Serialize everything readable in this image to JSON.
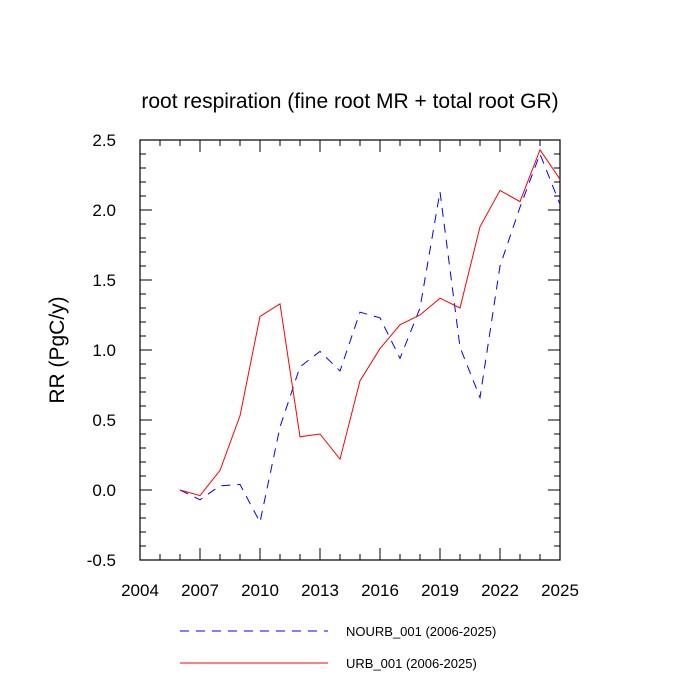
{
  "chart_data": {
    "type": "line",
    "title": "root respiration (fine root MR + total root GR)",
    "xlabel": "",
    "ylabel": "RR  (PgC/y)",
    "xlim": [
      2004,
      2025
    ],
    "ylim": [
      -0.5,
      2.5
    ],
    "x_ticks": [
      2004,
      2007,
      2010,
      2013,
      2016,
      2019,
      2022,
      2025
    ],
    "y_ticks": [
      "-0.5",
      "0.0",
      "0.5",
      "1.0",
      "1.5",
      "2.0",
      "2.5"
    ],
    "x": [
      2006,
      2007,
      2008,
      2009,
      2010,
      2011,
      2012,
      2013,
      2014,
      2015,
      2016,
      2017,
      2018,
      2019,
      2020,
      2021,
      2022,
      2023,
      2024,
      2025
    ],
    "series": [
      {
        "name": "NOURB_001 (2006-2025)",
        "color": "#0000ff",
        "style": "dashed",
        "values": [
          0.0,
          -0.07,
          0.03,
          0.04,
          -0.23,
          0.45,
          0.88,
          0.99,
          0.85,
          1.27,
          1.23,
          0.94,
          1.3,
          2.13,
          1.02,
          0.66,
          1.6,
          2.02,
          2.4,
          2.04
        ]
      },
      {
        "name": "URB_001 (2006-2025)",
        "color": "#ff0000",
        "style": "solid",
        "values": [
          0.0,
          -0.04,
          0.14,
          0.53,
          1.24,
          1.33,
          0.38,
          0.4,
          0.22,
          0.78,
          1.01,
          1.18,
          1.25,
          1.37,
          1.3,
          1.88,
          2.14,
          2.06,
          2.43,
          2.22
        ]
      }
    ],
    "legend_position": "bottom"
  }
}
